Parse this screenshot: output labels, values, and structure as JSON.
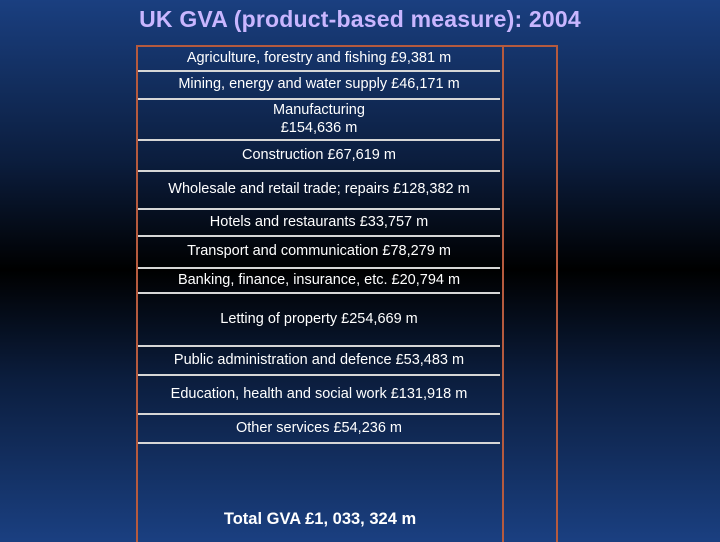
{
  "title": "UK GVA (product-based measure): 2004",
  "chart_data": {
    "type": "bar",
    "title": "UK GVA (product-based measure): 2004",
    "unit": "£ m",
    "categories": [
      "Agriculture, forestry and fishing",
      "Mining, energy and water supply",
      "Manufacturing",
      "Construction",
      "Wholesale and retail trade; repairs",
      "Hotels and restaurants",
      "Transport and communication",
      "Banking, finance, insurance, etc.",
      "Letting of property",
      "Public administration and defence",
      "Education, health and social work",
      "Other services"
    ],
    "values": [
      9381,
      46171,
      154636,
      67619,
      128382,
      33757,
      78279,
      20794,
      254669,
      53483,
      131918,
      54236
    ],
    "labels": [
      "Agriculture, forestry and fishing  £9,381 m",
      "Mining, energy and water supply  £46,171 m",
      "Manufacturing\n£154,636 m",
      "Construction  £67,619 m",
      "Wholesale and retail trade; repairs £128,382 m",
      "Hotels and restaurants £33,757 m",
      "Transport and communication  £78,279 m",
      "Banking, finance, insurance, etc.  £20,794 m",
      "Letting of property £254,669 m",
      "Public administration and defence  £53,483 m",
      "Education, health and social work  £131,918 m",
      "Other services  £54,236 m"
    ],
    "total": 1033324,
    "total_label": "Total GVA £1, 033, 324 m"
  }
}
